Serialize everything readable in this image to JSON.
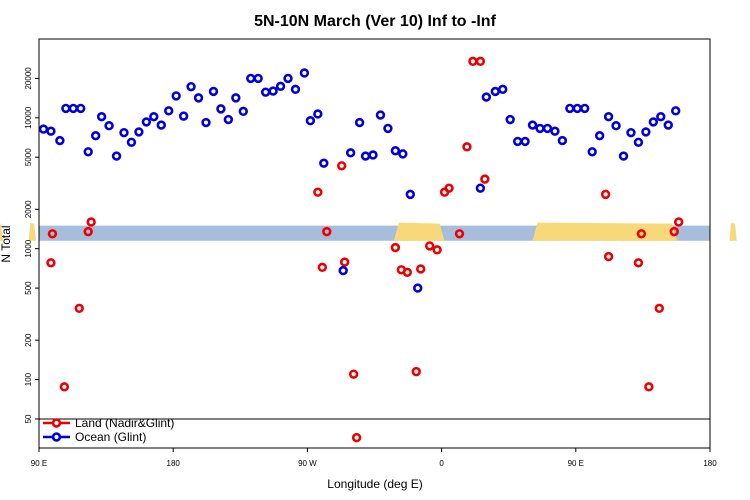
{
  "chart_data": {
    "type": "scatter",
    "title": "5N-10N March (Ver 10)   Inf to -Inf",
    "xlabel": "Longitude (deg E)",
    "ylabel": "N Total",
    "x_tick_labels": [
      "90 E",
      "180",
      "90 W",
      "0",
      "90 E",
      "180"
    ],
    "x_tick_values": [
      90,
      180,
      270,
      360,
      450,
      540
    ],
    "xlim": [
      90,
      540
    ],
    "y_scale": "log",
    "ylim": [
      30,
      40000
    ],
    "y_tick_labels": [
      "50",
      "100",
      "200",
      "500",
      "1000",
      "2000",
      "5000",
      "10000",
      "20000"
    ],
    "y_tick_values": [
      50,
      100,
      200,
      500,
      1000,
      2000,
      5000,
      10000,
      20000
    ],
    "land_band": {
      "y_low": 1150,
      "y_high": 1500,
      "ocean_color": "#a6bddb",
      "land_color": "#f8d97a"
    },
    "legend_separator_y": 50,
    "legend": [
      {
        "label": "Land (Nadir&Glint)",
        "color": "#ee0000"
      },
      {
        "label": "Ocean (Glint)",
        "color": "#0000dd"
      }
    ],
    "series": [
      {
        "name": "Land (Nadir&Glint)",
        "color": "#ee0000",
        "points": [
          [
            99,
            1300
          ],
          [
            98,
            780
          ],
          [
            107,
            88
          ],
          [
            117,
            350
          ],
          [
            123,
            1350
          ],
          [
            125,
            1600
          ],
          [
            277,
            2700
          ],
          [
            280,
            720
          ],
          [
            283,
            1350
          ],
          [
            293,
            4300
          ],
          [
            295,
            790
          ],
          [
            301,
            110
          ],
          [
            303,
            36
          ],
          [
            329,
            1020
          ],
          [
            333,
            690
          ],
          [
            337,
            660
          ],
          [
            343,
            115
          ],
          [
            346,
            700
          ],
          [
            352,
            1050
          ],
          [
            357,
            980
          ],
          [
            362,
            2700
          ],
          [
            365,
            2900
          ],
          [
            372,
            1300
          ],
          [
            377,
            6000
          ],
          [
            381,
            27000
          ],
          [
            386,
            27000
          ],
          [
            389,
            3400
          ],
          [
            470,
            2600
          ],
          [
            472,
            870
          ],
          [
            492,
            780
          ],
          [
            494,
            1300
          ],
          [
            499,
            88
          ],
          [
            506,
            350
          ],
          [
            516,
            1350
          ],
          [
            519,
            1600
          ]
        ]
      },
      {
        "name": "Ocean (Glint)",
        "color": "#0000dd",
        "points": [
          [
            93,
            8200
          ],
          [
            98,
            7900
          ],
          [
            104,
            6700
          ],
          [
            108,
            11800
          ],
          [
            113,
            11800
          ],
          [
            118,
            11800
          ],
          [
            123,
            5500
          ],
          [
            128,
            7300
          ],
          [
            132,
            10200
          ],
          [
            137,
            8700
          ],
          [
            142,
            5100
          ],
          [
            147,
            7700
          ],
          [
            152,
            6500
          ],
          [
            157,
            7800
          ],
          [
            162,
            9300
          ],
          [
            167,
            10200
          ],
          [
            172,
            8800
          ],
          [
            177,
            11300
          ],
          [
            182,
            14700
          ],
          [
            187,
            10300
          ],
          [
            192,
            17300
          ],
          [
            197,
            14200
          ],
          [
            202,
            9200
          ],
          [
            207,
            15900
          ],
          [
            212,
            11700
          ],
          [
            217,
            9700
          ],
          [
            222,
            14200
          ],
          [
            227,
            11200
          ],
          [
            232,
            20000
          ],
          [
            237,
            20000
          ],
          [
            242,
            15700
          ],
          [
            247,
            16000
          ],
          [
            252,
            17400
          ],
          [
            257,
            20000
          ],
          [
            262,
            16500
          ],
          [
            268,
            22000
          ],
          [
            272,
            9500
          ],
          [
            277,
            10700
          ],
          [
            281,
            4500
          ],
          [
            294,
            680
          ],
          [
            299,
            5400
          ],
          [
            305,
            9200
          ],
          [
            309,
            5100
          ],
          [
            314,
            5200
          ],
          [
            319,
            10500
          ],
          [
            324,
            8300
          ],
          [
            329,
            5600
          ],
          [
            334,
            5300
          ],
          [
            339,
            2600
          ],
          [
            344,
            500
          ],
          [
            386,
            2900
          ],
          [
            390,
            14400
          ],
          [
            396,
            15900
          ],
          [
            401,
            16500
          ],
          [
            406,
            9700
          ],
          [
            411,
            6600
          ],
          [
            416,
            6600
          ],
          [
            421,
            8800
          ],
          [
            426,
            8300
          ],
          [
            431,
            8300
          ],
          [
            436,
            7900
          ],
          [
            441,
            6700
          ],
          [
            446,
            11800
          ],
          [
            451,
            11800
          ],
          [
            456,
            11800
          ],
          [
            461,
            5500
          ],
          [
            466,
            7300
          ],
          [
            472,
            10200
          ],
          [
            477,
            8700
          ],
          [
            482,
            5100
          ],
          [
            487,
            7700
          ],
          [
            492,
            6500
          ],
          [
            497,
            7800
          ],
          [
            502,
            9300
          ],
          [
            507,
            10200
          ],
          [
            512,
            8800
          ],
          [
            517,
            11300
          ]
        ]
      }
    ]
  }
}
